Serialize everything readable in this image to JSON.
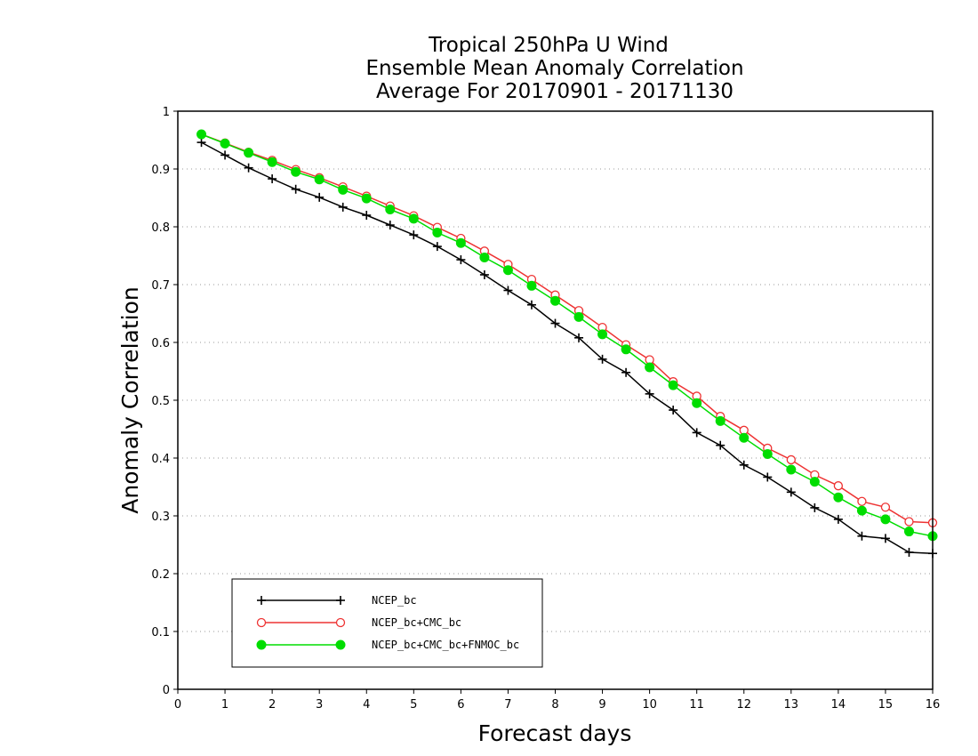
{
  "chart_data": {
    "type": "line",
    "title_lines": [
      "Tropical 250hPa U Wind",
      "Ensemble Mean Anomaly Correlation",
      "Average For 20170901 - 20171130"
    ],
    "xlabel": "Forecast days",
    "ylabel": "Anomaly Correlation",
    "xlim": [
      0,
      16
    ],
    "ylim": [
      0,
      1
    ],
    "xticks": [
      "0",
      "1",
      "2",
      "3",
      "4",
      "5",
      "6",
      "7",
      "8",
      "9",
      "10",
      "11",
      "12",
      "13",
      "14",
      "15",
      "16"
    ],
    "yticks": [
      "0",
      "0.1",
      "0.2",
      "0.3",
      "0.4",
      "0.5",
      "0.6",
      "0.7",
      "0.8",
      "0.9",
      "1"
    ],
    "grid": "dotted horizontal",
    "legend_position": "lower-left",
    "x": [
      0.5,
      1,
      1.5,
      2,
      2.5,
      3,
      3.5,
      4,
      4.5,
      5,
      5.5,
      6,
      6.5,
      7,
      7.5,
      8,
      8.5,
      9,
      9.5,
      10,
      10.5,
      11,
      11.5,
      12,
      12.5,
      13,
      13.5,
      14,
      14.5,
      15,
      15.5,
      16
    ],
    "series": [
      {
        "name": "NCEP_bc",
        "color": "#000000",
        "marker": "plus",
        "values": [
          0.946,
          0.924,
          0.902,
          0.883,
          0.865,
          0.851,
          0.834,
          0.82,
          0.803,
          0.786,
          0.766,
          0.743,
          0.717,
          0.69,
          0.665,
          0.633,
          0.608,
          0.571,
          0.548,
          0.511,
          0.483,
          0.444,
          0.422,
          0.388,
          0.367,
          0.341,
          0.314,
          0.294,
          0.265,
          0.261,
          0.237,
          0.235
        ]
      },
      {
        "name": "NCEP_bc+CMC_bc",
        "color": "#ee3333",
        "marker": "open-circle",
        "values": [
          0.96,
          0.945,
          0.929,
          0.915,
          0.899,
          0.885,
          0.869,
          0.853,
          0.836,
          0.819,
          0.799,
          0.78,
          0.758,
          0.735,
          0.709,
          0.682,
          0.655,
          0.626,
          0.596,
          0.57,
          0.532,
          0.507,
          0.472,
          0.448,
          0.417,
          0.397,
          0.371,
          0.352,
          0.325,
          0.315,
          0.29,
          0.288
        ]
      },
      {
        "name": "NCEP_bc+CMC_bc+FNMOC_bc",
        "color": "#00dd00",
        "marker": "filled-circle",
        "values": [
          0.96,
          0.944,
          0.928,
          0.912,
          0.895,
          0.882,
          0.864,
          0.849,
          0.83,
          0.814,
          0.79,
          0.772,
          0.747,
          0.725,
          0.698,
          0.672,
          0.644,
          0.614,
          0.588,
          0.557,
          0.526,
          0.495,
          0.464,
          0.435,
          0.407,
          0.38,
          0.359,
          0.332,
          0.309,
          0.294,
          0.273,
          0.265
        ]
      }
    ]
  }
}
